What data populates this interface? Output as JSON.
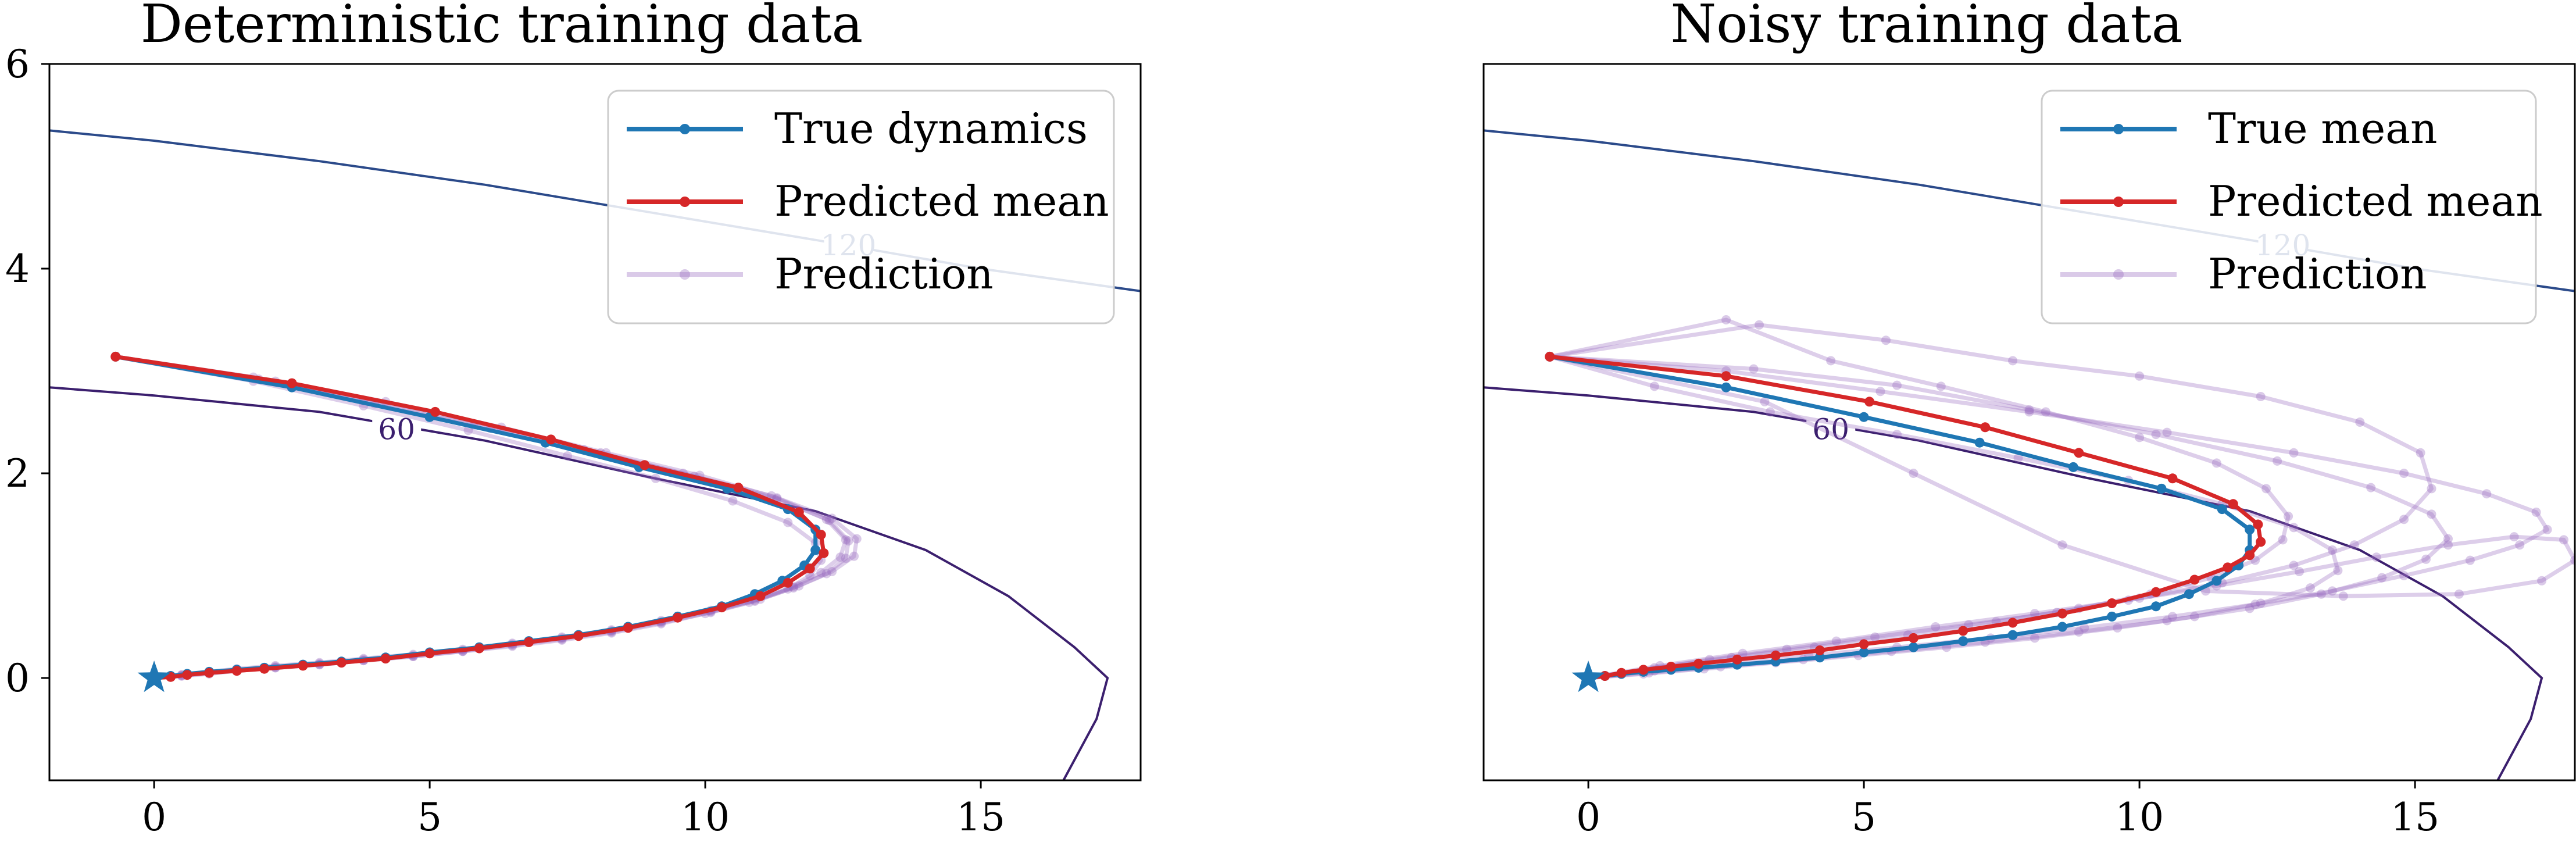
{
  "colors": {
    "true": "#1f77b4",
    "pred": "#d62728",
    "prediction": "#9467bd",
    "contour60": "#3b1f6e",
    "contour120": "#2b4a8a"
  },
  "chart_data": [
    {
      "type": "line",
      "title": "Deterministic training data",
      "xlim": [
        -1.9,
        17.9
      ],
      "ylim": [
        -1,
        6
      ],
      "xticks": [
        0,
        5,
        10,
        15
      ],
      "yticks": [
        0,
        2,
        4,
        6
      ],
      "legend": {
        "position": "top-right",
        "entries": [
          "True dynamics",
          "Predicted mean",
          "Prediction"
        ]
      },
      "start_marker": {
        "x": 0,
        "y": 0,
        "symbol": "star"
      },
      "contours": [
        {
          "label": "60",
          "label_pos": [
            4.4,
            2.4
          ],
          "points": [
            [
              -1.9,
              2.84
            ],
            [
              0,
              2.76
            ],
            [
              3,
              2.6
            ],
            [
              6,
              2.32
            ],
            [
              9,
              1.96
            ],
            [
              12,
              1.63
            ],
            [
              14,
              1.25
            ],
            [
              15.5,
              0.8
            ],
            [
              16.7,
              0.3
            ],
            [
              17.3,
              0.0
            ],
            [
              17.1,
              -0.4
            ],
            [
              16.5,
              -1.0
            ]
          ]
        },
        {
          "label": "120",
          "label_pos": [
            12.6,
            4.2
          ],
          "points": [
            [
              -1.9,
              5.35
            ],
            [
              0,
              5.25
            ],
            [
              3,
              5.05
            ],
            [
              6,
              4.82
            ],
            [
              9,
              4.55
            ],
            [
              12,
              4.28
            ],
            [
              15,
              4.0
            ],
            [
              17.9,
              3.78
            ]
          ]
        }
      ],
      "series": [
        {
          "name": "True dynamics",
          "color": "#1f77b4",
          "x": [
            0,
            0.3,
            0.6,
            1,
            1.5,
            2,
            2.7,
            3.4,
            4.2,
            5,
            5.9,
            6.8,
            7.7,
            8.6,
            9.5,
            10.3,
            10.9,
            11.4,
            11.8,
            12,
            12,
            11.5,
            10.4,
            8.8,
            7.1,
            5,
            2.5,
            -0.7
          ],
          "y": [
            0,
            0.02,
            0.04,
            0.06,
            0.08,
            0.1,
            0.13,
            0.16,
            0.2,
            0.25,
            0.3,
            0.36,
            0.42,
            0.5,
            0.6,
            0.7,
            0.82,
            0.95,
            1.1,
            1.25,
            1.45,
            1.65,
            1.85,
            2.06,
            2.3,
            2.55,
            2.84,
            3.14
          ]
        },
        {
          "name": "Predicted mean",
          "color": "#d62728",
          "x": [
            0,
            0.3,
            0.6,
            1,
            1.5,
            2,
            2.7,
            3.4,
            4.2,
            5,
            5.9,
            6.8,
            7.7,
            8.6,
            9.5,
            10.3,
            11,
            11.5,
            11.9,
            12.15,
            12.1,
            11.7,
            10.6,
            8.9,
            7.2,
            5.1,
            2.5,
            -0.7
          ],
          "y": [
            0,
            0.01,
            0.03,
            0.05,
            0.07,
            0.09,
            0.12,
            0.15,
            0.19,
            0.24,
            0.29,
            0.35,
            0.41,
            0.49,
            0.59,
            0.69,
            0.8,
            0.93,
            1.07,
            1.22,
            1.4,
            1.62,
            1.86,
            2.08,
            2.33,
            2.6,
            2.88,
            3.14
          ]
        }
      ],
      "predictions": [
        {
          "x": [
            0,
            0.5,
            1,
            1.5,
            2.2,
            3,
            3.8,
            4.7,
            5.6,
            6.5,
            7.4,
            8.3,
            9.2,
            10.1,
            10.9,
            11.6,
            12.1,
            12.45,
            12.55,
            12.2,
            11.3,
            9.9,
            8.2,
            6.3,
            4.2,
            2.2,
            -0.7
          ],
          "y": [
            0,
            0.03,
            0.05,
            0.08,
            0.11,
            0.14,
            0.18,
            0.22,
            0.27,
            0.33,
            0.39,
            0.46,
            0.55,
            0.65,
            0.76,
            0.89,
            1.03,
            1.18,
            1.35,
            1.55,
            1.76,
            1.98,
            2.2,
            2.45,
            2.7,
            2.9,
            3.14
          ]
        },
        {
          "x": [
            0,
            0.5,
            1,
            1.5,
            2.2,
            3,
            3.8,
            4.7,
            5.6,
            6.5,
            7.4,
            8.3,
            9.2,
            10,
            10.8,
            11.5,
            11.9,
            12.1,
            12,
            11.5,
            10.5,
            9.1,
            7.5,
            5.7,
            3.8,
            1.8,
            -0.7
          ],
          "y": [
            0,
            0.02,
            0.05,
            0.07,
            0.1,
            0.13,
            0.17,
            0.21,
            0.26,
            0.31,
            0.37,
            0.44,
            0.53,
            0.63,
            0.74,
            0.87,
            1.0,
            1.15,
            1.32,
            1.52,
            1.73,
            1.95,
            2.17,
            2.42,
            2.66,
            2.9,
            3.14
          ]
        },
        {
          "x": [
            0,
            0.5,
            1,
            1.5,
            2.2,
            3,
            3.8,
            4.7,
            5.6,
            6.5,
            7.4,
            8.3,
            9.2,
            10.1,
            11,
            11.7,
            12.3,
            12.7,
            12.75,
            12.3,
            11.2,
            9.6,
            7.8,
            5.8,
            3.8,
            1.8,
            -0.7
          ],
          "y": [
            0,
            0.03,
            0.06,
            0.09,
            0.12,
            0.15,
            0.19,
            0.23,
            0.28,
            0.34,
            0.4,
            0.47,
            0.56,
            0.66,
            0.77,
            0.9,
            1.04,
            1.19,
            1.36,
            1.56,
            1.78,
            2.0,
            2.23,
            2.47,
            2.71,
            2.94,
            3.14
          ]
        },
        {
          "x": [
            0,
            0.5,
            1,
            1.5,
            2.2,
            3,
            3.8,
            4.7,
            5.6,
            6.5,
            7.4,
            8.3,
            9.2,
            10.1,
            10.9,
            11.6,
            12.2,
            12.55,
            12.6,
            12.25,
            11.3,
            9.8,
            8.1,
            6.1,
            4.0,
            1.9,
            -0.7
          ],
          "y": [
            0,
            0.02,
            0.04,
            0.07,
            0.1,
            0.13,
            0.17,
            0.21,
            0.26,
            0.32,
            0.38,
            0.45,
            0.54,
            0.64,
            0.75,
            0.88,
            1.02,
            1.17,
            1.34,
            1.54,
            1.75,
            1.97,
            2.2,
            2.44,
            2.68,
            2.92,
            3.14
          ]
        }
      ]
    },
    {
      "type": "line",
      "title": "Noisy training data",
      "xlim": [
        -1.9,
        17.9
      ],
      "ylim": [
        -1,
        6
      ],
      "xticks": [
        0,
        5,
        10,
        15
      ],
      "yticks": [],
      "legend": {
        "position": "top-right",
        "entries": [
          "True mean",
          "Predicted mean",
          "Prediction"
        ]
      },
      "start_marker": {
        "x": 0,
        "y": 0,
        "symbol": "star"
      },
      "contours": [
        {
          "label": "60",
          "label_pos": [
            4.4,
            2.4
          ],
          "points": [
            [
              -1.9,
              2.84
            ],
            [
              0,
              2.76
            ],
            [
              3,
              2.6
            ],
            [
              6,
              2.32
            ],
            [
              9,
              1.96
            ],
            [
              12,
              1.63
            ],
            [
              14,
              1.25
            ],
            [
              15.5,
              0.8
            ],
            [
              16.7,
              0.3
            ],
            [
              17.3,
              0.0
            ],
            [
              17.1,
              -0.4
            ],
            [
              16.5,
              -1.0
            ]
          ]
        },
        {
          "label": "120",
          "label_pos": [
            12.6,
            4.2
          ],
          "points": [
            [
              -1.9,
              5.35
            ],
            [
              0,
              5.25
            ],
            [
              3,
              5.05
            ],
            [
              6,
              4.82
            ],
            [
              9,
              4.55
            ],
            [
              12,
              4.28
            ],
            [
              15,
              4.0
            ],
            [
              17.9,
              3.78
            ]
          ]
        }
      ],
      "series": [
        {
          "name": "True mean",
          "color": "#1f77b4",
          "x": [
            0,
            0.3,
            0.6,
            1,
            1.5,
            2,
            2.7,
            3.4,
            4.2,
            5,
            5.9,
            6.8,
            7.7,
            8.6,
            9.5,
            10.3,
            10.9,
            11.4,
            11.8,
            12,
            12,
            11.5,
            10.4,
            8.8,
            7.1,
            5,
            2.5,
            -0.7
          ],
          "y": [
            0,
            0.02,
            0.04,
            0.06,
            0.08,
            0.1,
            0.13,
            0.16,
            0.2,
            0.25,
            0.3,
            0.36,
            0.42,
            0.5,
            0.6,
            0.7,
            0.82,
            0.95,
            1.1,
            1.25,
            1.45,
            1.65,
            1.85,
            2.06,
            2.3,
            2.55,
            2.84,
            3.14
          ]
        },
        {
          "name": "Predicted mean",
          "color": "#d62728",
          "x": [
            0,
            0.3,
            0.6,
            1,
            1.5,
            2,
            2.7,
            3.4,
            4.2,
            5,
            5.9,
            6.8,
            7.7,
            8.6,
            9.5,
            10.3,
            11,
            11.6,
            12,
            12.2,
            12.15,
            11.7,
            10.6,
            8.9,
            7.2,
            5.1,
            2.5,
            -0.7
          ],
          "y": [
            0,
            0.02,
            0.05,
            0.08,
            0.11,
            0.14,
            0.18,
            0.22,
            0.27,
            0.33,
            0.39,
            0.46,
            0.54,
            0.63,
            0.73,
            0.84,
            0.96,
            1.08,
            1.2,
            1.33,
            1.5,
            1.7,
            1.95,
            2.2,
            2.45,
            2.7,
            2.95,
            3.14
          ]
        }
      ],
      "predictions": [
        {
          "x": [
            0,
            1.2,
            2.6,
            4.1,
            5.8,
            7.4,
            8.9,
            10.2,
            11.3,
            12.1,
            12.6,
            12.7,
            12.3,
            11.4,
            10.0,
            8.3,
            6.4,
            4.4,
            2.5,
            -0.7
          ],
          "y": [
            0,
            0.1,
            0.2,
            0.3,
            0.42,
            0.55,
            0.68,
            0.82,
            0.98,
            1.15,
            1.35,
            1.58,
            1.85,
            2.1,
            2.35,
            2.6,
            2.85,
            3.1,
            3.5,
            3.14
          ]
        },
        {
          "x": [
            0,
            1.0,
            2.2,
            3.6,
            5.2,
            6.9,
            8.5,
            10.0,
            11.5,
            12.8,
            13.9,
            14.8,
            15.3,
            15.1,
            14.0,
            12.2,
            10.0,
            7.7,
            5.4,
            3.1,
            -0.7
          ],
          "y": [
            0,
            0.08,
            0.18,
            0.28,
            0.4,
            0.52,
            0.64,
            0.78,
            0.93,
            1.1,
            1.3,
            1.55,
            1.85,
            2.2,
            2.5,
            2.75,
            2.95,
            3.1,
            3.3,
            3.45,
            3.14
          ]
        },
        {
          "x": [
            0,
            1.3,
            2.8,
            4.5,
            6.3,
            8.1,
            9.8,
            11.4,
            12.9,
            14.3,
            15.6,
            16.8,
            17.7,
            17.9,
            17.3,
            15.8,
            13.7,
            11.2,
            8.6,
            5.9,
            3.2,
            -0.7
          ],
          "y": [
            0,
            0.12,
            0.24,
            0.36,
            0.5,
            0.63,
            0.76,
            0.9,
            1.04,
            1.18,
            1.3,
            1.38,
            1.35,
            1.15,
            0.95,
            0.82,
            0.8,
            0.85,
            1.3,
            2.0,
            2.7,
            3.14
          ]
        },
        {
          "x": [
            0,
            1.1,
            2.4,
            3.9,
            5.5,
            7.2,
            8.9,
            10.5,
            12.0,
            13.3,
            14.4,
            15.2,
            15.6,
            15.3,
            14.2,
            12.5,
            10.3,
            8.0,
            5.6,
            3.0,
            -0.7
          ],
          "y": [
            0,
            0.05,
            0.11,
            0.18,
            0.26,
            0.35,
            0.45,
            0.56,
            0.68,
            0.82,
            0.98,
            1.16,
            1.36,
            1.6,
            1.86,
            2.12,
            2.38,
            2.62,
            2.86,
            3.02,
            3.14
          ]
        },
        {
          "x": [
            0,
            1.2,
            2.5,
            4.0,
            5.6,
            7.3,
            9.0,
            10.6,
            12.1,
            13.5,
            14.8,
            16.0,
            16.9,
            17.4,
            17.2,
            16.3,
            14.8,
            12.8,
            10.5,
            8.0,
            5.3,
            2.5,
            -0.7
          ],
          "y": [
            0,
            0.07,
            0.14,
            0.22,
            0.3,
            0.39,
            0.49,
            0.6,
            0.72,
            0.85,
            1.0,
            1.15,
            1.3,
            1.45,
            1.62,
            1.8,
            2.0,
            2.2,
            2.4,
            2.6,
            2.8,
            3.0,
            3.14
          ]
        },
        {
          "x": [
            0,
            1.0,
            2.1,
            3.4,
            4.9,
            6.5,
            8.1,
            9.6,
            11.0,
            12.2,
            13.1,
            13.6,
            13.5,
            12.8,
            11.5,
            9.8,
            7.8,
            5.6,
            3.3,
            1.2,
            -0.7
          ],
          "y": [
            0,
            0.04,
            0.09,
            0.15,
            0.22,
            0.3,
            0.39,
            0.49,
            0.6,
            0.73,
            0.88,
            1.05,
            1.25,
            1.47,
            1.7,
            1.93,
            2.15,
            2.38,
            2.6,
            2.85,
            3.14
          ]
        }
      ]
    }
  ]
}
